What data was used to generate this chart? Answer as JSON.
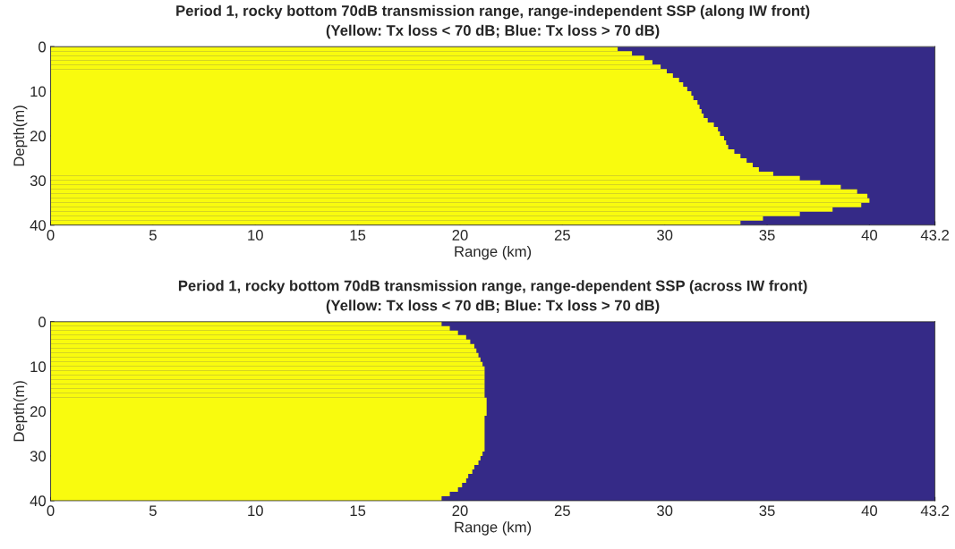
{
  "chart_data": [
    {
      "type": "bar",
      "orientation": "horizontal",
      "title": "Period 1, rocky bottom 70dB transmission range, range-independent SSP (along IW front)",
      "subtitle": "(Yellow: Tx loss < 70 dB; Blue: Tx loss > 70 dB)",
      "xlabel": "Range (km)",
      "ylabel": "Depth(m)",
      "x": [
        0.5,
        1.5,
        2.5,
        3.5,
        4.5,
        5.5,
        6.5,
        7.5,
        8.5,
        9.5,
        10.5,
        11.5,
        12.5,
        13.5,
        14.5,
        15.5,
        16.5,
        17.5,
        18.5,
        19.5,
        20.5,
        21.5,
        22.5,
        23.5,
        24.5,
        25.5,
        26.5,
        27.5,
        28.5,
        29.5,
        30.5,
        31.5,
        32.5,
        33.5,
        34.5,
        35.5,
        36.5,
        37.5,
        38.5,
        39.5
      ],
      "values": [
        27.7,
        28.4,
        29.0,
        29.4,
        29.8,
        30.1,
        30.4,
        30.7,
        30.9,
        31.1,
        31.3,
        31.4,
        31.6,
        31.7,
        31.8,
        31.9,
        32.1,
        32.4,
        32.6,
        32.7,
        32.9,
        33.0,
        33.1,
        33.4,
        33.7,
        34.0,
        34.3,
        34.6,
        35.3,
        36.6,
        37.6,
        38.6,
        39.4,
        39.9,
        40.0,
        39.6,
        38.2,
        36.6,
        34.8,
        33.7
      ],
      "color": "#f9fb0e",
      "bands": [
        {
          "axis": "x",
          "from": 0,
          "to": 43.2,
          "color": "#352a87"
        }
      ],
      "xlim": [
        0,
        43.2
      ],
      "xticks": [
        0,
        5,
        10,
        15,
        20,
        25,
        30,
        35,
        40,
        43.2
      ],
      "ylim": [
        40,
        0
      ],
      "yticks": [
        0,
        10,
        20,
        30,
        40
      ],
      "grid": false
    },
    {
      "type": "bar",
      "orientation": "horizontal",
      "title": "Period 1, rocky bottom 70dB transmission range, range-dependent SSP (across IW front)",
      "subtitle": "(Yellow: Tx loss < 70 dB; Blue: Tx loss > 70 dB)",
      "xlabel": "Range (km)",
      "ylabel": "Depth(m)",
      "x": [
        0.5,
        1.5,
        2.5,
        3.5,
        4.5,
        5.5,
        6.5,
        7.5,
        8.5,
        9.5,
        10.5,
        11.5,
        12.5,
        13.5,
        14.5,
        15.5,
        16.5,
        17.5,
        18.5,
        19.5,
        20.5,
        21.5,
        22.5,
        23.5,
        24.5,
        25.5,
        26.5,
        27.5,
        28.5,
        29.5,
        30.5,
        31.5,
        32.5,
        33.5,
        34.5,
        35.5,
        36.5,
        37.5,
        38.5,
        39.5
      ],
      "values": [
        19.1,
        19.5,
        19.9,
        20.3,
        20.5,
        20.7,
        20.8,
        20.9,
        21.0,
        21.1,
        21.2,
        21.2,
        21.2,
        21.2,
        21.2,
        21.2,
        21.2,
        21.3,
        21.3,
        21.3,
        21.3,
        21.2,
        21.2,
        21.2,
        21.2,
        21.2,
        21.2,
        21.2,
        21.2,
        21.1,
        21.0,
        20.9,
        20.7,
        20.6,
        20.4,
        20.3,
        20.1,
        19.9,
        19.5,
        19.1
      ],
      "color": "#f9fb0e",
      "bands": [
        {
          "axis": "x",
          "from": 0,
          "to": 43.2,
          "color": "#352a87"
        }
      ],
      "xlim": [
        0,
        43.2
      ],
      "xticks": [
        0,
        5,
        10,
        15,
        20,
        25,
        30,
        35,
        40,
        43.2
      ],
      "ylim": [
        40,
        0
      ],
      "yticks": [
        0,
        10,
        20,
        30,
        40
      ],
      "grid": false
    }
  ]
}
